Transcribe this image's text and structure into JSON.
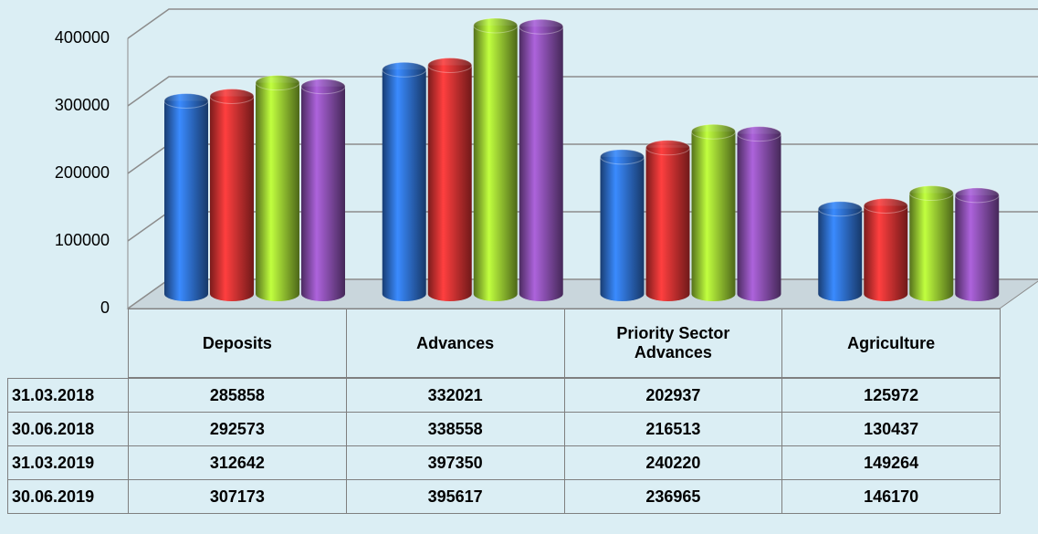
{
  "chart_data": {
    "type": "bar3d",
    "categories": [
      "Deposits",
      "Advances",
      "Priority Sector Advances",
      "Agriculture"
    ],
    "series": [
      {
        "name": "31.03.2018",
        "color": "#2e6fd0",
        "values": [
          285858,
          332021,
          202937,
          125972
        ]
      },
      {
        "name": "30.06.2018",
        "color": "#e03232",
        "values": [
          292573,
          338558,
          216513,
          130437
        ]
      },
      {
        "name": "31.03.2019",
        "color": "#9acd32",
        "values": [
          312642,
          397350,
          240220,
          149264
        ]
      },
      {
        "name": "30.06.2019",
        "color": "#8a4fb0",
        "values": [
          307173,
          395617,
          236965,
          146170
        ]
      }
    ],
    "ylim": [
      0,
      400000
    ],
    "yticks": [
      0,
      100000,
      200000,
      300000,
      400000
    ],
    "grid": true
  }
}
